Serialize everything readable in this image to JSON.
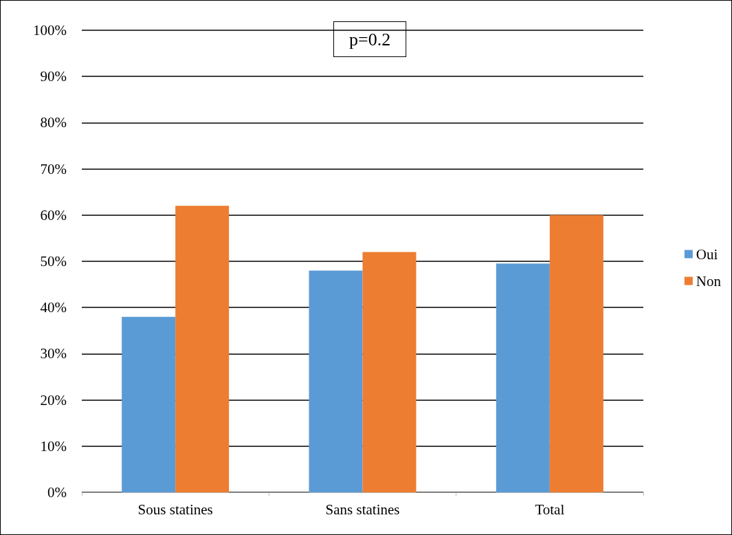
{
  "chart_data": {
    "type": "bar",
    "categories": [
      "Sous statines",
      "Sans statines",
      "Total"
    ],
    "series": [
      {
        "name": "Oui",
        "color": "#5b9bd5",
        "values": [
          38,
          48,
          49.5
        ]
      },
      {
        "name": "Non",
        "color": "#ed7d31",
        "values": [
          62,
          52,
          60
        ]
      }
    ],
    "ylim": [
      0,
      100
    ],
    "yticks": [
      {
        "value": 0,
        "label": "0%"
      },
      {
        "value": 10,
        "label": "10%"
      },
      {
        "value": 20,
        "label": "20%"
      },
      {
        "value": 30,
        "label": "30%"
      },
      {
        "value": 40,
        "label": "40%"
      },
      {
        "value": 50,
        "label": "50%"
      },
      {
        "value": 60,
        "label": "60%"
      },
      {
        "value": 70,
        "label": "70%"
      },
      {
        "value": 80,
        "label": "80%"
      },
      {
        "value": 90,
        "label": "90%"
      },
      {
        "value": 100,
        "label": "100%"
      }
    ],
    "grid": "y",
    "legend": "right",
    "annotations": [
      "p=0.2"
    ]
  }
}
